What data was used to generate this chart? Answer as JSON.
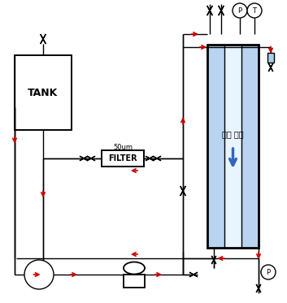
{
  "bg_color": "#ffffff",
  "line_color": "#000000",
  "arrow_color": "#cc0000",
  "flow_text": "유동 방향",
  "tank_label": "TANK",
  "filter_label": "FILTER",
  "filter_sublabel": "50um",
  "stripe_colors": [
    "#b8d4f0",
    "#e8f4ff",
    "#b8d4f0"
  ],
  "blue_arrow_color": "#3366bb"
}
